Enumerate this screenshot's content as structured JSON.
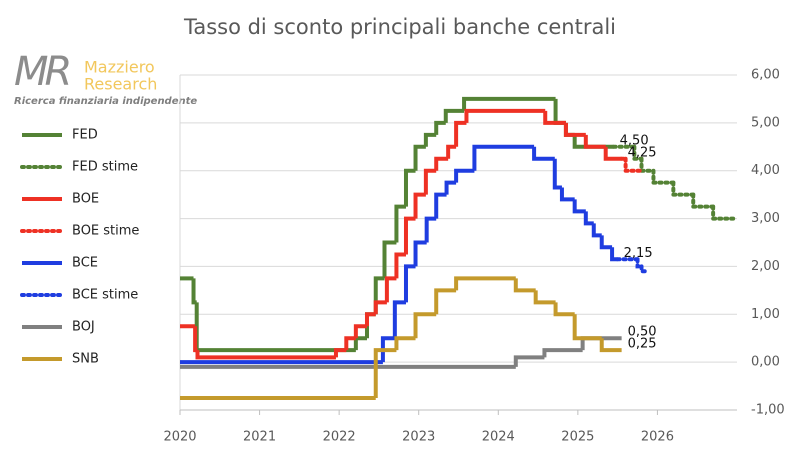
{
  "logo": {
    "mark": "MR",
    "name1": "Mazziero",
    "name2": "Research",
    "tagline": "Ricerca finanziaria indipendente"
  },
  "chart_data": {
    "type": "line",
    "step": "post",
    "title": "Tasso di sconto principali banche centrali",
    "xlim": [
      2020,
      2027
    ],
    "xticks": [
      2020,
      2021,
      2022,
      2023,
      2024,
      2025,
      2026
    ],
    "ylim": [
      -1,
      6
    ],
    "yaxis_side": "right",
    "grid": true,
    "legend": "left",
    "yticks": [
      {
        "value": -1,
        "label": "-1,00"
      },
      {
        "value": 0,
        "label": "0,00"
      },
      {
        "value": 1,
        "label": "1,00"
      },
      {
        "value": 2,
        "label": "2,00"
      },
      {
        "value": 3,
        "label": "3,00"
      },
      {
        "value": 4,
        "label": "4,00"
      },
      {
        "value": 5,
        "label": "5,00"
      },
      {
        "value": 6,
        "label": "6,00"
      }
    ],
    "series": [
      {
        "name": "FED",
        "color": "#548235",
        "style": "solid",
        "x": [
          2020,
          2020.17,
          2020.21,
          2022.21,
          2022.35,
          2022.46,
          2022.57,
          2022.72,
          2022.84,
          2022.96,
          2023.09,
          2023.22,
          2023.34,
          2023.57,
          2024.72,
          2024.85,
          2024.96,
          2025.45
        ],
        "values": [
          1.75,
          1.25,
          0.25,
          0.5,
          1.0,
          1.75,
          2.5,
          3.25,
          4.0,
          4.5,
          4.75,
          5.0,
          5.25,
          5.5,
          5.0,
          4.75,
          4.5,
          4.5
        ],
        "value_labels": [
          null,
          null,
          null,
          null,
          null,
          null,
          null,
          null,
          null,
          null,
          null,
          null,
          null,
          null,
          null,
          null,
          null,
          "4,50"
        ]
      },
      {
        "name": "FED stime",
        "color": "#548235",
        "style": "dotted",
        "x": [
          2025.45,
          2025.71,
          2025.8,
          2025.95,
          2026.2,
          2026.45,
          2026.7,
          2027
        ],
        "values": [
          4.5,
          4.25,
          4.0,
          3.75,
          3.5,
          3.25,
          3.0,
          3.0
        ]
      },
      {
        "name": "BOE",
        "color": "#ee3124",
        "style": "solid",
        "x": [
          2020,
          2020.19,
          2020.22,
          2021.96,
          2022.09,
          2022.21,
          2022.35,
          2022.46,
          2022.6,
          2022.72,
          2022.84,
          2022.96,
          2023.09,
          2023.22,
          2023.37,
          2023.47,
          2023.6,
          2024.59,
          2024.85,
          2025.1,
          2025.35,
          2025.55
        ],
        "values": [
          0.75,
          0.25,
          0.1,
          0.25,
          0.5,
          0.75,
          1.0,
          1.25,
          1.75,
          2.25,
          3.0,
          3.5,
          4.0,
          4.25,
          4.5,
          5.0,
          5.25,
          5.0,
          4.75,
          4.5,
          4.25,
          4.25
        ],
        "value_labels": [
          null,
          null,
          null,
          null,
          null,
          null,
          null,
          null,
          null,
          null,
          null,
          null,
          null,
          null,
          null,
          null,
          null,
          null,
          null,
          null,
          null,
          "4,25"
        ]
      },
      {
        "name": "BOE stime",
        "color": "#ee3124",
        "style": "dotted",
        "x": [
          2025.55,
          2025.6,
          2025.8
        ],
        "values": [
          4.25,
          4.0,
          4.0
        ]
      },
      {
        "name": "BCE",
        "color": "#1f3de0",
        "style": "solid",
        "x": [
          2020,
          2022.55,
          2022.7,
          2022.84,
          2022.96,
          2023.1,
          2023.22,
          2023.35,
          2023.47,
          2023.7,
          2024.45,
          2024.71,
          2024.8,
          2024.96,
          2025.1,
          2025.2,
          2025.3,
          2025.43,
          2025.5
        ],
        "values": [
          0,
          0.5,
          1.25,
          2.0,
          2.5,
          3.0,
          3.5,
          3.75,
          4.0,
          4.5,
          4.25,
          3.65,
          3.4,
          3.15,
          2.9,
          2.65,
          2.4,
          2.15,
          2.15
        ],
        "value_labels": [
          null,
          null,
          null,
          null,
          null,
          null,
          null,
          null,
          null,
          null,
          null,
          null,
          null,
          null,
          null,
          null,
          null,
          null,
          "2,15"
        ]
      },
      {
        "name": "BCE stime",
        "color": "#1f3de0",
        "style": "dotted",
        "x": [
          2025.5,
          2025.75,
          2025.8,
          2025.85
        ],
        "values": [
          2.15,
          2.0,
          1.9,
          1.9
        ]
      },
      {
        "name": "BOJ",
        "color": "#808080",
        "style": "solid",
        "x": [
          2020,
          2024.22,
          2024.58,
          2025.06,
          2025.55
        ],
        "values": [
          -0.1,
          0.1,
          0.25,
          0.5,
          0.5
        ],
        "value_labels": [
          null,
          null,
          null,
          null,
          "0,50"
        ]
      },
      {
        "name": "SNB",
        "color": "#c49a2c",
        "style": "solid",
        "x": [
          2020,
          2022.46,
          2022.72,
          2022.96,
          2023.22,
          2023.47,
          2024.22,
          2024.47,
          2024.72,
          2024.96,
          2025.3,
          2025.55
        ],
        "values": [
          -0.75,
          0.25,
          0.5,
          1.0,
          1.5,
          1.75,
          1.5,
          1.25,
          1.0,
          0.5,
          0.25,
          0.25
        ],
        "value_labels": [
          null,
          null,
          null,
          null,
          null,
          null,
          null,
          null,
          null,
          null,
          null,
          "0,25"
        ]
      }
    ]
  }
}
